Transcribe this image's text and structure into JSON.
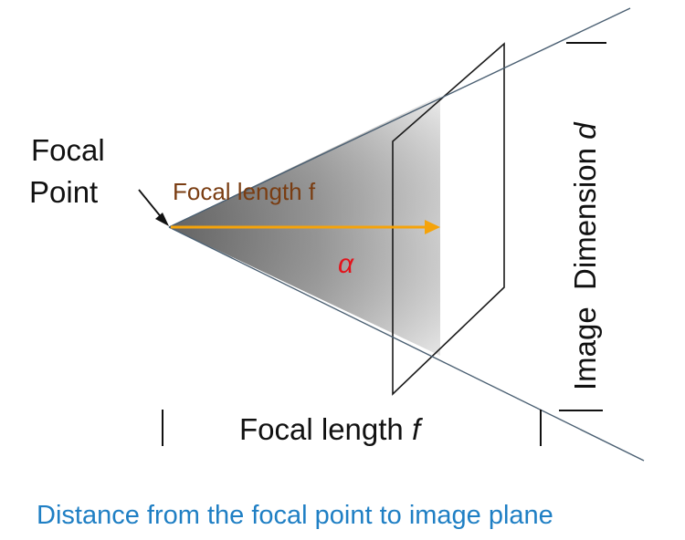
{
  "labels": {
    "focal_point_line1": "Focal",
    "focal_point_line2": "Point",
    "focal_length_arrow": "Focal length f",
    "angle": "α",
    "bottom_focal_length_prefix": "Focal length ",
    "bottom_focal_length_var": "f",
    "image_dimension_prefix": "Image  Dimension ",
    "image_dimension_var": "d",
    "caption": "Distance from the focal point to image plane"
  },
  "colors": {
    "ray_line": "#4a5f72",
    "arrow": "#f5a30a",
    "arrow_label": "#7a3d12",
    "angle_label": "#e3131b",
    "caption": "#1f7fc4",
    "text": "#111111",
    "cone_dark": "#7d7d7d",
    "cone_light": "#e2e2e2"
  }
}
